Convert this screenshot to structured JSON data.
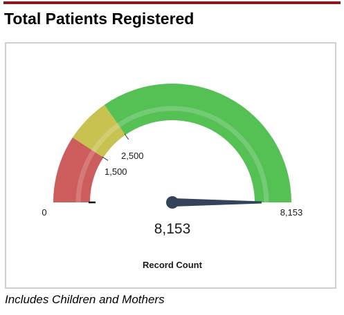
{
  "header": {
    "title": "Total Patients Registered"
  },
  "gauge": {
    "min": 0,
    "max": 8153,
    "value": 8153,
    "value_label": "8,153",
    "caption": "Record Count",
    "min_label": "0",
    "max_label": "8,153",
    "colors": {
      "red": "#cd5c5c",
      "yellow": "#c8c350",
      "green": "#55c155",
      "needle": "#34425a"
    },
    "bands": [
      {
        "name": "red",
        "from": 0,
        "to": 1500,
        "label": "1,500"
      },
      {
        "name": "yellow",
        "from": 1500,
        "to": 2500,
        "label": "2,500"
      },
      {
        "name": "green",
        "from": 2500,
        "to": 8153,
        "label": ""
      }
    ]
  },
  "footnote": "Includes Children and Mothers"
}
